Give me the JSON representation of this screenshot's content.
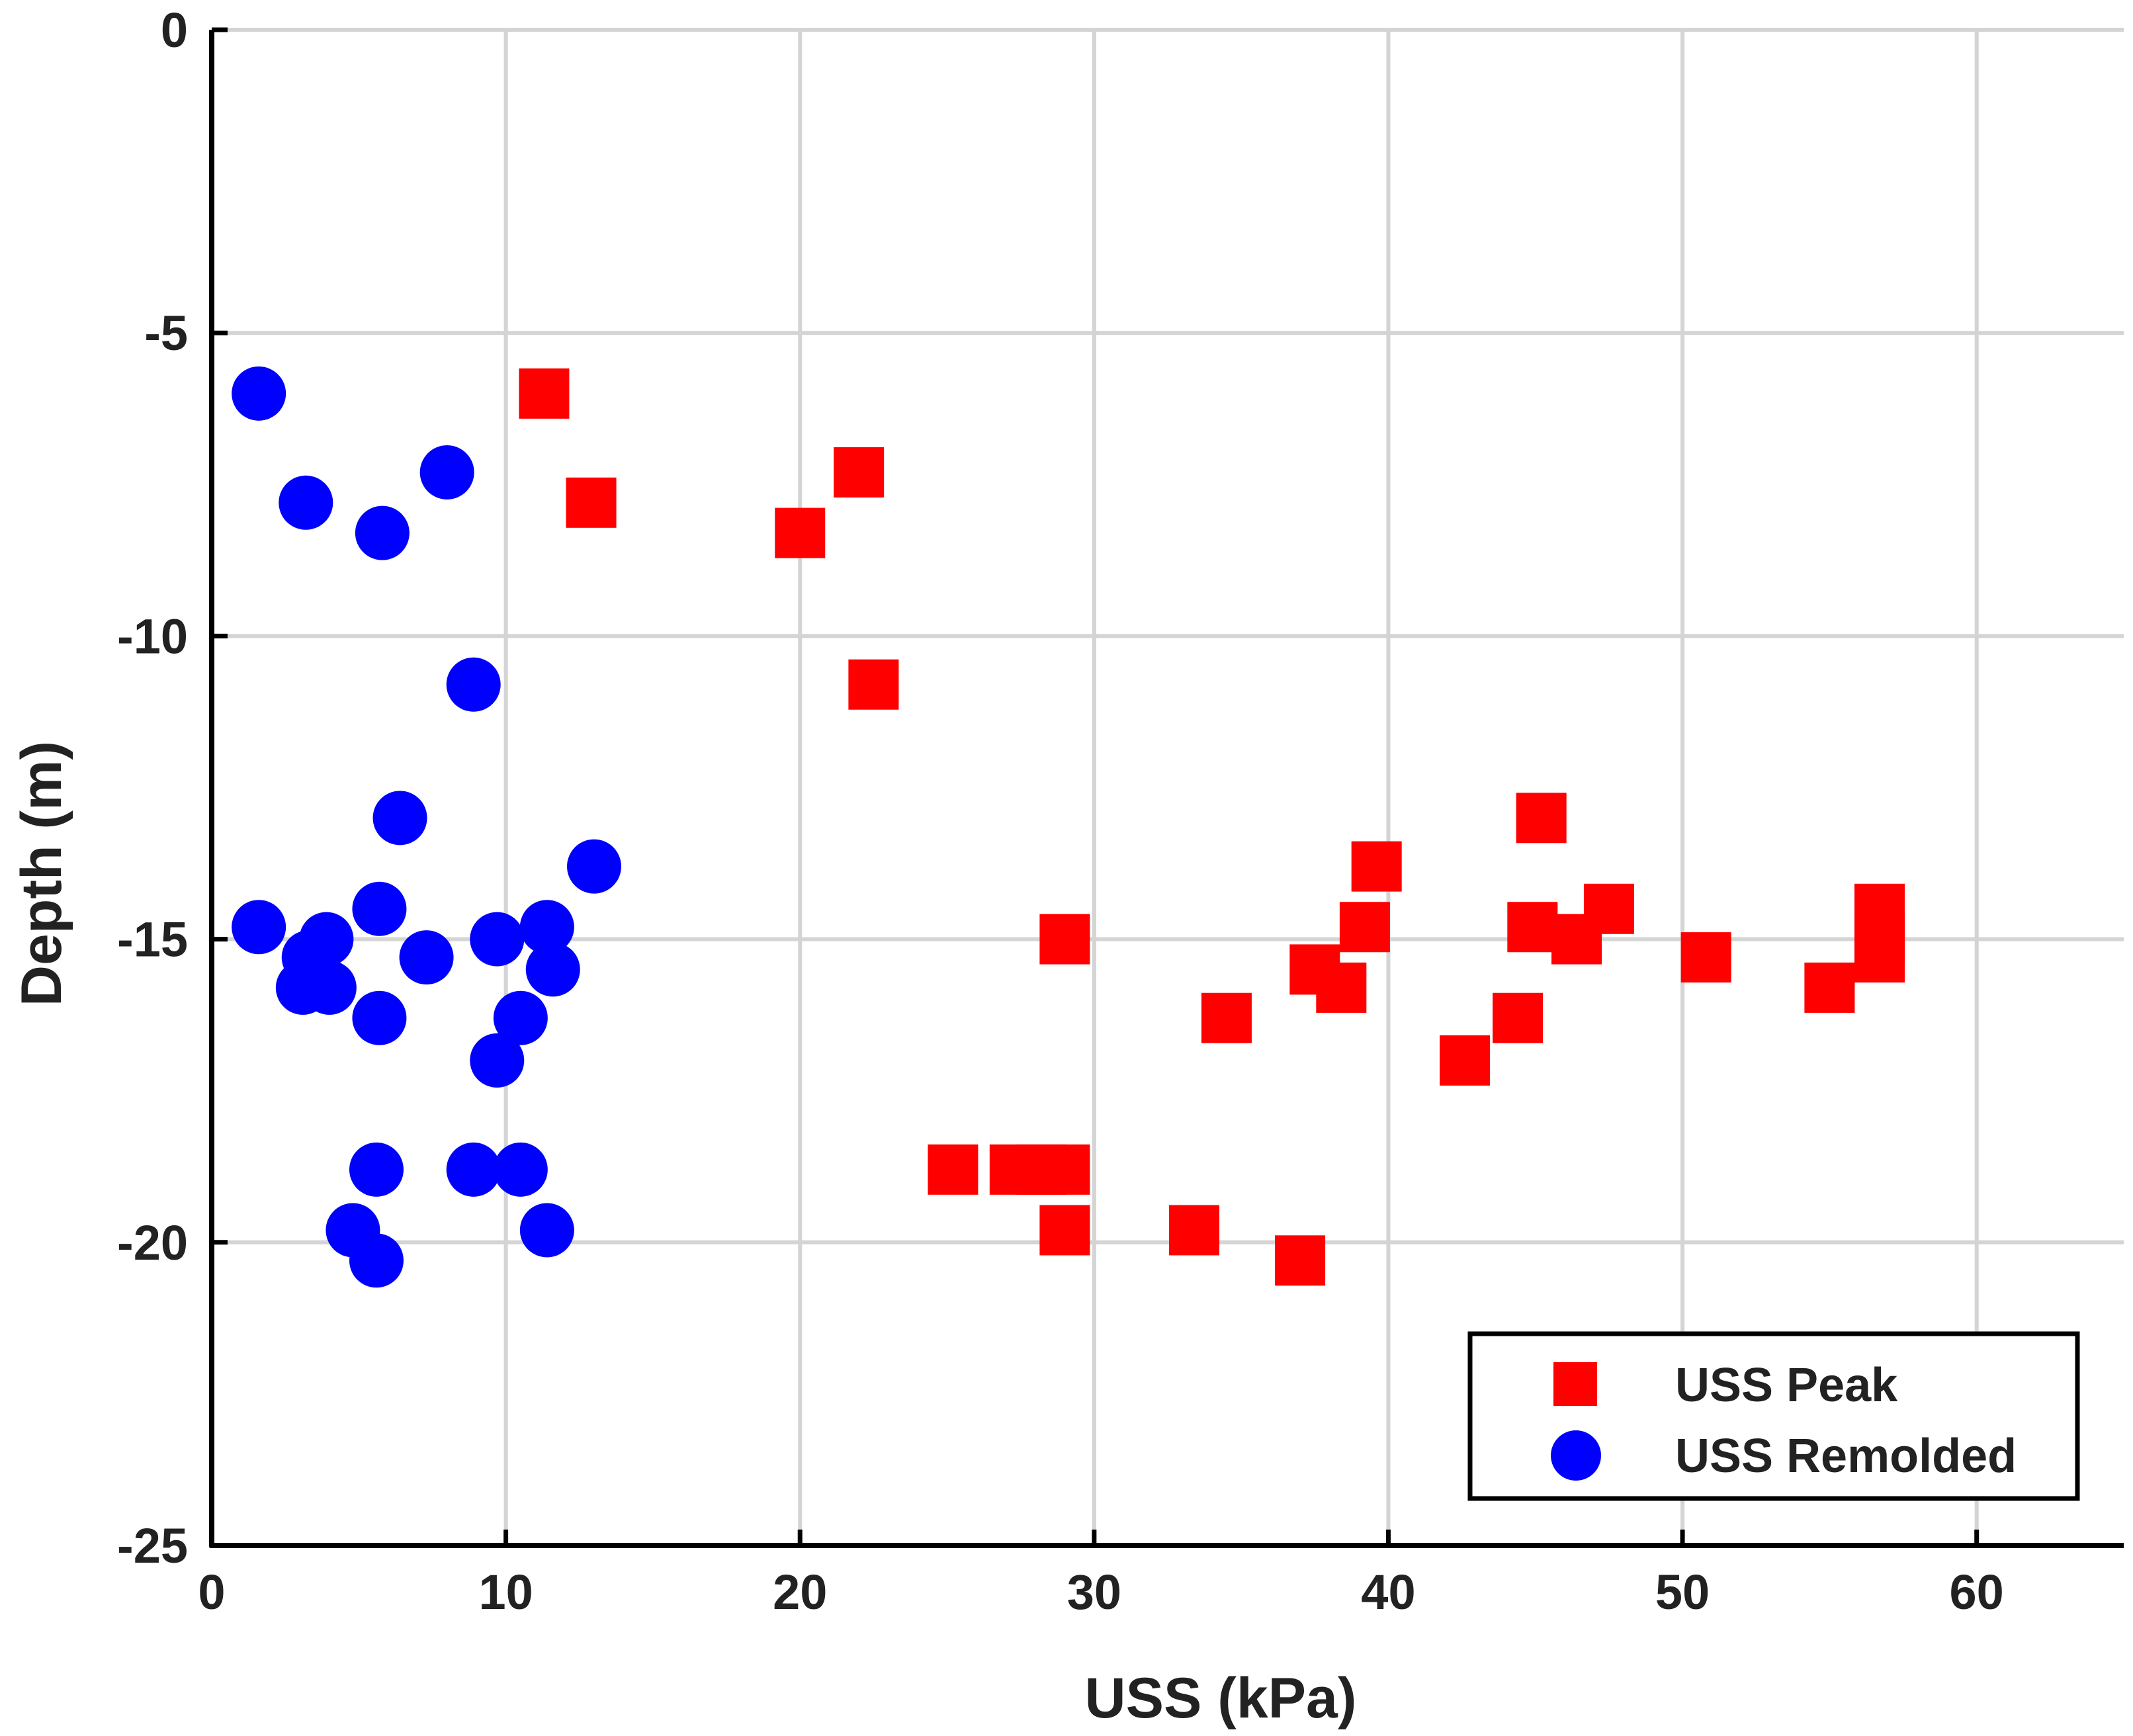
{
  "chart_data": {
    "type": "scatter",
    "title": "",
    "xlabel": "USS (kPa)",
    "ylabel": "Depth (m)",
    "xlim": [
      0,
      65
    ],
    "ylim": [
      -25,
      0
    ],
    "grid": true,
    "x_ticks": [
      0,
      10,
      20,
      30,
      40,
      50,
      60
    ],
    "y_ticks": [
      0,
      -5,
      -10,
      -15,
      -20,
      -25
    ],
    "legend_position": "bottom-right",
    "series": [
      {
        "name": "USS Peak",
        "marker": "square",
        "color": "#ff0000",
        "points": [
          [
            11.3,
            -6.0
          ],
          [
            12.9,
            -7.8
          ],
          [
            22.0,
            -7.3
          ],
          [
            20.0,
            -8.3
          ],
          [
            22.5,
            -10.8
          ],
          [
            45.2,
            -13.0
          ],
          [
            39.6,
            -13.8
          ],
          [
            47.5,
            -14.5
          ],
          [
            56.7,
            -14.5
          ],
          [
            39.2,
            -14.8
          ],
          [
            44.9,
            -14.8
          ],
          [
            29.0,
            -15.0
          ],
          [
            46.4,
            -15.0
          ],
          [
            56.7,
            -15.0
          ],
          [
            50.8,
            -15.3
          ],
          [
            56.7,
            -15.3
          ],
          [
            37.5,
            -15.5
          ],
          [
            38.4,
            -15.8
          ],
          [
            55.0,
            -15.8
          ],
          [
            34.5,
            -16.3
          ],
          [
            44.4,
            -16.3
          ],
          [
            42.6,
            -17.0
          ],
          [
            25.2,
            -18.8
          ],
          [
            27.3,
            -18.8
          ],
          [
            28.2,
            -18.8
          ],
          [
            29.0,
            -18.8
          ],
          [
            29.0,
            -19.8
          ],
          [
            33.4,
            -19.8
          ],
          [
            37.0,
            -20.3
          ]
        ]
      },
      {
        "name": "USS Remolded",
        "marker": "circle",
        "color": "#0000ff",
        "points": [
          [
            1.6,
            -6.0
          ],
          [
            3.2,
            -7.8
          ],
          [
            8.0,
            -7.3
          ],
          [
            5.8,
            -8.3
          ],
          [
            8.9,
            -10.8
          ],
          [
            6.4,
            -13.0
          ],
          [
            13.0,
            -13.8
          ],
          [
            5.7,
            -14.5
          ],
          [
            1.6,
            -14.8
          ],
          [
            11.4,
            -14.8
          ],
          [
            3.9,
            -15.0
          ],
          [
            9.7,
            -15.0
          ],
          [
            3.3,
            -15.3
          ],
          [
            7.3,
            -15.3
          ],
          [
            11.6,
            -15.5
          ],
          [
            3.1,
            -15.8
          ],
          [
            4.0,
            -15.8
          ],
          [
            5.7,
            -16.3
          ],
          [
            10.5,
            -16.3
          ],
          [
            9.7,
            -17.0
          ],
          [
            5.6,
            -18.8
          ],
          [
            8.9,
            -18.8
          ],
          [
            10.5,
            -18.8
          ],
          [
            4.8,
            -19.8
          ],
          [
            11.4,
            -19.8
          ],
          [
            5.6,
            -20.3
          ]
        ]
      }
    ]
  }
}
